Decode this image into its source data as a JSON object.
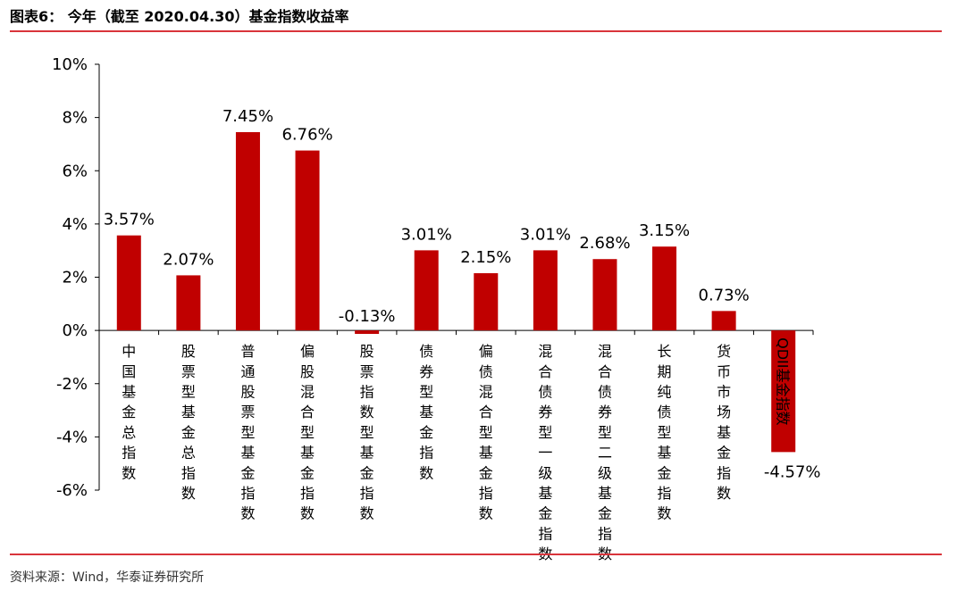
{
  "title": "图表6： 今年（截至 2020.04.30）基金指数收益率",
  "source": "资料来源：Wind，华泰证券研究所",
  "chart_data": {
    "type": "bar",
    "categories": [
      "中国基金总指数",
      "股票型基金总指数",
      "普通股票型基金指数",
      "偏股混合型基金指数",
      "股票指数型基金指数",
      "债券型基金指数",
      "偏债混合型基金指数",
      "混合债券型一级基金指数",
      "混合债券型二级基金指数",
      "长期纯债型基金指数",
      "货币市场基金指数",
      "QDII基金指数"
    ],
    "values": [
      3.57,
      2.07,
      7.45,
      6.76,
      -0.13,
      3.01,
      2.15,
      3.01,
      2.68,
      3.15,
      0.73,
      -4.57
    ],
    "data_labels": [
      "3.57%",
      "2.07%",
      "7.45%",
      "6.76%",
      "-0.13%",
      "3.01%",
      "2.15%",
      "3.01%",
      "2.68%",
      "3.15%",
      "0.73%",
      "-4.57%"
    ],
    "yticks": [
      10,
      8,
      6,
      4,
      2,
      0,
      -2,
      -4,
      -6
    ],
    "ytick_labels": [
      "10%",
      "8%",
      "6%",
      "4%",
      "2%",
      "0%",
      "-2%",
      "-4%",
      "-6%"
    ],
    "ylim": [
      -6,
      10
    ],
    "bar_color": "#c00000",
    "grid": false,
    "legend": "none"
  }
}
